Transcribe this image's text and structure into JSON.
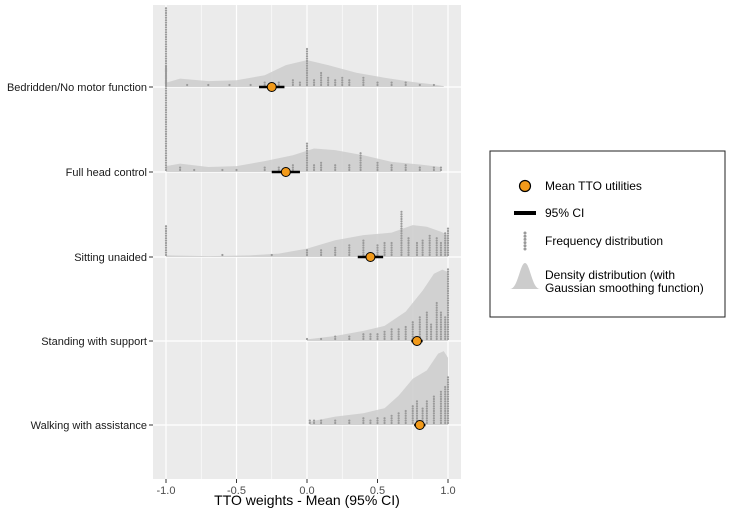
{
  "chart_data": {
    "type": "ridgeline",
    "xlabel": "TTO weights - Mean (95% CI)",
    "xlim": [
      -1.1,
      1.1
    ],
    "xticks": [
      -1.0,
      -0.5,
      0.0,
      0.5,
      1.0
    ],
    "xtick_labels": [
      "-1.0",
      "-0.5",
      "0.0",
      "0.5",
      "1.0"
    ],
    "grid": true,
    "legend_position": "right",
    "categories": [
      "Bedridden/No motor function",
      "Full head control",
      "Sitting unaided",
      "Standing with support",
      "Walking with assistance"
    ],
    "series": [
      {
        "name": "Bedridden/No motor function",
        "mean": -0.25,
        "ci": [
          -0.34,
          -0.16
        ],
        "density": [
          [
            -1.0,
            0.05
          ],
          [
            -0.9,
            0.1
          ],
          [
            -0.7,
            0.07
          ],
          [
            -0.5,
            0.08
          ],
          [
            -0.3,
            0.14
          ],
          [
            -0.15,
            0.26
          ],
          [
            0.0,
            0.32
          ],
          [
            0.15,
            0.26
          ],
          [
            0.35,
            0.17
          ],
          [
            0.55,
            0.11
          ],
          [
            0.75,
            0.06
          ],
          [
            0.9,
            0.03
          ],
          [
            0.97,
            0.01
          ]
        ],
        "frequency": [
          [
            -1.0,
            48
          ],
          [
            -0.85,
            1
          ],
          [
            -0.7,
            1
          ],
          [
            -0.55,
            1
          ],
          [
            -0.4,
            1
          ],
          [
            -0.3,
            2
          ],
          [
            -0.2,
            2
          ],
          [
            -0.1,
            3
          ],
          [
            -0.05,
            2
          ],
          [
            0.0,
            16
          ],
          [
            0.05,
            3
          ],
          [
            0.1,
            6
          ],
          [
            0.15,
            4
          ],
          [
            0.2,
            3
          ],
          [
            0.25,
            4
          ],
          [
            0.3,
            3
          ],
          [
            0.4,
            4
          ],
          [
            0.5,
            2
          ],
          [
            0.6,
            2
          ],
          [
            0.7,
            2
          ],
          [
            0.8,
            1
          ],
          [
            0.9,
            1
          ]
        ]
      },
      {
        "name": "Full head control",
        "mean": -0.15,
        "ci": [
          -0.25,
          -0.05
        ],
        "density": [
          [
            -1.0,
            0.07
          ],
          [
            -0.9,
            0.1
          ],
          [
            -0.7,
            0.06
          ],
          [
            -0.5,
            0.07
          ],
          [
            -0.3,
            0.13
          ],
          [
            -0.1,
            0.2
          ],
          [
            0.05,
            0.28
          ],
          [
            0.2,
            0.26
          ],
          [
            0.4,
            0.2
          ],
          [
            0.6,
            0.12
          ],
          [
            0.8,
            0.09
          ],
          [
            0.95,
            0.06
          ]
        ],
        "frequency": [
          [
            -1.0,
            44
          ],
          [
            -0.9,
            2
          ],
          [
            -0.8,
            1
          ],
          [
            -0.6,
            1
          ],
          [
            -0.5,
            1
          ],
          [
            -0.3,
            2
          ],
          [
            -0.2,
            2
          ],
          [
            -0.1,
            3
          ],
          [
            0.0,
            12
          ],
          [
            0.05,
            3
          ],
          [
            0.1,
            4
          ],
          [
            0.2,
            3
          ],
          [
            0.3,
            3
          ],
          [
            0.38,
            8
          ],
          [
            0.5,
            4
          ],
          [
            0.6,
            3
          ],
          [
            0.7,
            3
          ],
          [
            0.8,
            2
          ],
          [
            0.9,
            2
          ],
          [
            0.95,
            2
          ]
        ]
      },
      {
        "name": "Sitting unaided",
        "mean": 0.45,
        "ci": [
          0.36,
          0.54
        ],
        "density": [
          [
            -1.0,
            0.02
          ],
          [
            -0.7,
            0.01
          ],
          [
            -0.4,
            0.02
          ],
          [
            -0.2,
            0.04
          ],
          [
            0.0,
            0.1
          ],
          [
            0.2,
            0.2
          ],
          [
            0.4,
            0.26
          ],
          [
            0.6,
            0.29
          ],
          [
            0.75,
            0.38
          ],
          [
            0.85,
            0.36
          ],
          [
            0.95,
            0.3
          ],
          [
            1.0,
            0.26
          ]
        ],
        "frequency": [
          [
            -1.0,
            13
          ],
          [
            -0.6,
            1
          ],
          [
            -0.25,
            1
          ],
          [
            0.0,
            3
          ],
          [
            0.1,
            3
          ],
          [
            0.2,
            4
          ],
          [
            0.3,
            5
          ],
          [
            0.4,
            7
          ],
          [
            0.5,
            5
          ],
          [
            0.55,
            6
          ],
          [
            0.6,
            6
          ],
          [
            0.67,
            19
          ],
          [
            0.72,
            8
          ],
          [
            0.78,
            6
          ],
          [
            0.82,
            7
          ],
          [
            0.87,
            9
          ],
          [
            0.92,
            8
          ],
          [
            0.95,
            6
          ],
          [
            0.98,
            10
          ],
          [
            1.0,
            12
          ]
        ]
      },
      {
        "name": "Standing with support",
        "mean": 0.78,
        "ci": [
          0.74,
          0.82
        ],
        "density": [
          [
            0.0,
            0.02
          ],
          [
            0.2,
            0.06
          ],
          [
            0.4,
            0.12
          ],
          [
            0.55,
            0.18
          ],
          [
            0.7,
            0.35
          ],
          [
            0.82,
            0.6
          ],
          [
            0.9,
            0.8
          ],
          [
            0.96,
            0.85
          ],
          [
            1.0,
            0.82
          ]
        ],
        "frequency": [
          [
            0.0,
            1
          ],
          [
            0.1,
            1
          ],
          [
            0.2,
            2
          ],
          [
            0.3,
            2
          ],
          [
            0.4,
            3
          ],
          [
            0.45,
            3
          ],
          [
            0.5,
            3
          ],
          [
            0.55,
            4
          ],
          [
            0.6,
            5
          ],
          [
            0.65,
            5
          ],
          [
            0.7,
            6
          ],
          [
            0.75,
            8
          ],
          [
            0.8,
            10
          ],
          [
            0.85,
            12
          ],
          [
            0.88,
            7
          ],
          [
            0.92,
            16
          ],
          [
            0.95,
            12
          ],
          [
            0.98,
            10
          ],
          [
            1.0,
            30
          ]
        ]
      },
      {
        "name": "Walking with assistance",
        "mean": 0.8,
        "ci": [
          0.76,
          0.84
        ],
        "density": [
          [
            0.02,
            0.04
          ],
          [
            0.2,
            0.1
          ],
          [
            0.4,
            0.14
          ],
          [
            0.55,
            0.2
          ],
          [
            0.65,
            0.35
          ],
          [
            0.75,
            0.55
          ],
          [
            0.85,
            0.65
          ],
          [
            0.93,
            0.85
          ],
          [
            0.97,
            0.88
          ],
          [
            1.0,
            0.8
          ]
        ],
        "frequency": [
          [
            0.02,
            2
          ],
          [
            0.05,
            2
          ],
          [
            0.1,
            2
          ],
          [
            0.2,
            2
          ],
          [
            0.3,
            2
          ],
          [
            0.4,
            3
          ],
          [
            0.45,
            2
          ],
          [
            0.5,
            3
          ],
          [
            0.55,
            3
          ],
          [
            0.6,
            4
          ],
          [
            0.65,
            5
          ],
          [
            0.7,
            6
          ],
          [
            0.75,
            8
          ],
          [
            0.78,
            10
          ],
          [
            0.82,
            7
          ],
          [
            0.85,
            10
          ],
          [
            0.9,
            12
          ],
          [
            0.95,
            14
          ],
          [
            0.98,
            16
          ],
          [
            1.0,
            20
          ]
        ]
      }
    ]
  },
  "legend": {
    "items": [
      {
        "label_lines": [
          "Mean TTO utilities"
        ]
      },
      {
        "label_lines": [
          "95% CI"
        ]
      },
      {
        "label_lines": [
          "Frequency distribution"
        ]
      },
      {
        "label_lines": [
          "Density distribution (with",
          "Gaussian smoothing function)"
        ]
      }
    ]
  },
  "colors": {
    "panel_bg": "#ebebeb",
    "grid": "#ffffff",
    "density_fill": "#cccccc",
    "frequency_dot": "#9a9a9a",
    "mean_point": "#f29a1a",
    "ci_line": "#000000"
  }
}
